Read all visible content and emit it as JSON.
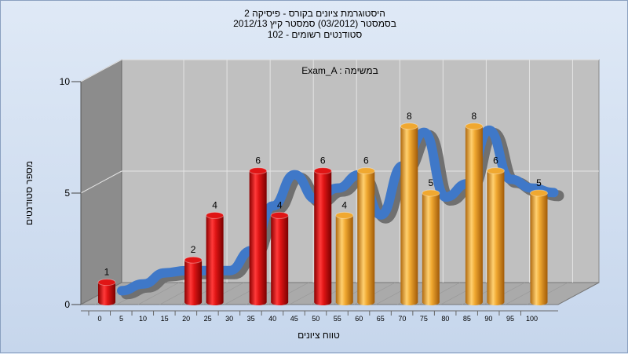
{
  "chart_data": {
    "type": "bar",
    "title_lines": [
      "היסטוגרמת ציונים בקורס - פיסיקה 2",
      "בסמסטר  (03/2012)  סמסטר קיץ 2012/13",
      "סטודנטים רשומים - 102"
    ],
    "annotation": "Exam_A : במשימה",
    "xlabel": "טווח ציונים",
    "ylabel": "מספר סטודנטים",
    "ylim": [
      0,
      10
    ],
    "y_ticks": [
      "0",
      "5",
      "10"
    ],
    "x_ticks": [
      "0",
      "5",
      "10",
      "15",
      "20",
      "25",
      "30",
      "35",
      "40",
      "45",
      "50",
      "55",
      "60",
      "65",
      "70",
      "75",
      "80",
      "85",
      "90",
      "95",
      "100"
    ],
    "bars": [
      {
        "x": 0,
        "value": 1,
        "color": "#e01515",
        "label": "1"
      },
      {
        "x": 20,
        "value": 2,
        "color": "#e01515",
        "label": "2"
      },
      {
        "x": 25,
        "value": 4,
        "color": "#e01515",
        "label": "4"
      },
      {
        "x": 35,
        "value": 6,
        "color": "#e01515",
        "label": "6"
      },
      {
        "x": 40,
        "value": 4,
        "color": "#e01515",
        "label": "4"
      },
      {
        "x": 50,
        "value": 6,
        "color": "#e01515",
        "label": "6"
      },
      {
        "x": 55,
        "value": 4,
        "color": "#f0a830",
        "label": "4"
      },
      {
        "x": 60,
        "value": 6,
        "color": "#f0a830",
        "label": "6"
      },
      {
        "x": 70,
        "value": 8,
        "color": "#f0a830",
        "label": "8"
      },
      {
        "x": 75,
        "value": 5,
        "color": "#f0a830",
        "label": "5"
      },
      {
        "x": 85,
        "value": 8,
        "color": "#f0a830",
        "label": "8"
      },
      {
        "x": 90,
        "value": 6,
        "color": "#f0a830",
        "label": "6"
      },
      {
        "x": 100,
        "value": 5,
        "color": "#f0a830",
        "label": "5"
      }
    ],
    "curve": {
      "x": [
        0,
        5,
        10,
        15,
        20,
        25,
        30,
        35,
        40,
        45,
        50,
        55,
        60,
        65,
        70,
        75,
        80,
        85,
        90,
        95,
        100
      ],
      "values": [
        0.2,
        0.5,
        1.0,
        1.1,
        1.1,
        1.1,
        2.0,
        4.0,
        5.4,
        4.3,
        4.8,
        5.4,
        3.6,
        5.8,
        7.3,
        4.4,
        5.0,
        7.4,
        5.2,
        4.8,
        4.6
      ]
    },
    "colors": {
      "plot_back": "#c0c0c0",
      "left_wall": "#8c8c8c",
      "floor": "#aaaaaa",
      "grid": "#e4e4e4",
      "curve_front": "#3f78c8",
      "curve_side": "#707070",
      "red": "#e01515",
      "orange": "#f0a830"
    },
    "grid": true
  }
}
